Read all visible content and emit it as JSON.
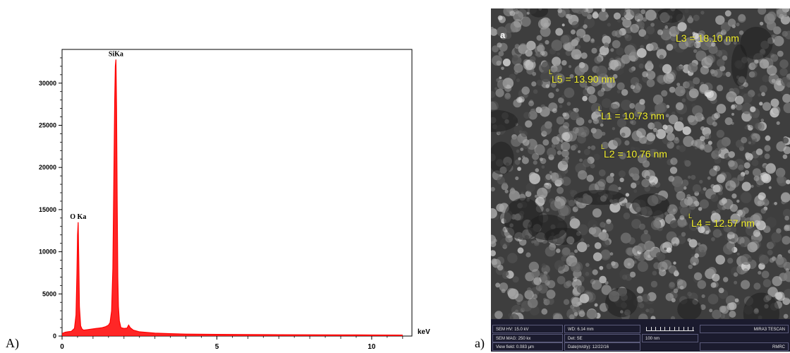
{
  "panels": {
    "left_letter": "A)",
    "right_letter": "a)"
  },
  "chart_data": {
    "type": "line",
    "title": "",
    "xlabel": "keV",
    "ylabel": "",
    "xlim": [
      0,
      11.3
    ],
    "ylim": [
      0,
      34000
    ],
    "x_ticks": [
      0,
      5,
      10
    ],
    "y_ticks": [
      0,
      5000,
      10000,
      15000,
      20000,
      25000,
      30000
    ],
    "grid": false,
    "series_color": "#ff0000",
    "peaks": [
      {
        "label": "O Ka",
        "x": 0.52,
        "y": 13500
      },
      {
        "label": "SiKa",
        "x": 1.74,
        "y": 32800
      }
    ],
    "x": [
      0.0,
      0.1,
      0.2,
      0.3,
      0.4,
      0.45,
      0.48,
      0.5,
      0.52,
      0.54,
      0.56,
      0.6,
      0.65,
      0.7,
      0.8,
      0.9,
      1.0,
      1.1,
      1.2,
      1.3,
      1.4,
      1.5,
      1.55,
      1.6,
      1.64,
      1.67,
      1.7,
      1.72,
      1.74,
      1.76,
      1.78,
      1.8,
      1.82,
      1.85,
      1.9,
      2.0,
      2.1,
      2.15,
      2.2,
      2.3,
      2.5,
      3.0,
      3.5,
      4.0,
      5.0,
      6.0,
      7.0,
      8.0,
      9.0,
      10.0,
      11.0
    ],
    "y": [
      300,
      450,
      520,
      560,
      900,
      2500,
      7500,
      12000,
      13500,
      9000,
      3500,
      1200,
      800,
      700,
      750,
      800,
      850,
      900,
      950,
      1000,
      1100,
      1300,
      1600,
      3000,
      8000,
      18000,
      28000,
      32000,
      32800,
      27000,
      16000,
      7000,
      3500,
      1800,
      1000,
      900,
      950,
      1300,
      1000,
      700,
      500,
      350,
      280,
      230,
      200,
      180,
      160,
      150,
      140,
      130,
      120
    ]
  },
  "sem": {
    "panel_tag": "a",
    "measurements": [
      {
        "label": "L3 = 18.10 nm"
      },
      {
        "label": "L5 = 13.90 nm"
      },
      {
        "label": "L1 = 10.73 nm"
      },
      {
        "label": "L2 = 10.76 nm"
      },
      {
        "label": "L4 = 12.57 nm"
      }
    ],
    "info": {
      "hv": "SEM HV: 15.0 kV",
      "wd": "WD: 6.14 mm",
      "mag": "SEM MAG: 250 kx",
      "det": "Det: SE",
      "view_field": "View field: 0.083 µm",
      "date": "Date(m/d/y): 12/22/16",
      "scale": "100 nm",
      "instrument": "MIRA3 TESCAN",
      "lab": "RMRC"
    }
  }
}
